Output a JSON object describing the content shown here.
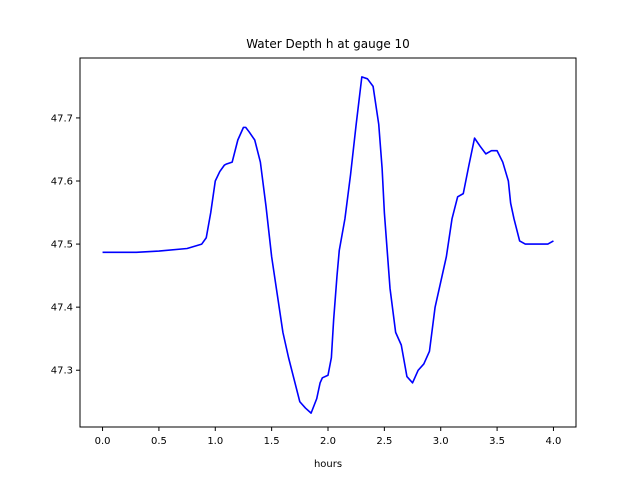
{
  "chart_data": {
    "type": "line",
    "title": "Water Depth h at gauge 10",
    "xlabel": "hours",
    "ylabel": "",
    "xlim": [
      -0.2,
      4.2
    ],
    "ylim": [
      47.21,
      47.795
    ],
    "xticks": [
      0.0,
      0.5,
      1.0,
      1.5,
      2.0,
      2.5,
      3.0,
      3.5,
      4.0
    ],
    "xtick_labels": [
      "0.0",
      "0.5",
      "1.0",
      "1.5",
      "2.0",
      "2.5",
      "3.0",
      "3.5",
      "4.0"
    ],
    "yticks": [
      47.3,
      47.4,
      47.5,
      47.6,
      47.7
    ],
    "ytick_labels": [
      "47.3",
      "47.4",
      "47.5",
      "47.6",
      "47.7"
    ],
    "grid": false,
    "series": [
      {
        "color": "#0000ff",
        "x": [
          0.0,
          0.3,
          0.5,
          0.75,
          0.88,
          0.92,
          0.96,
          1.0,
          1.04,
          1.08,
          1.1,
          1.15,
          1.2,
          1.25,
          1.27,
          1.3,
          1.35,
          1.4,
          1.45,
          1.5,
          1.55,
          1.6,
          1.65,
          1.7,
          1.75,
          1.8,
          1.85,
          1.9,
          1.93,
          1.95,
          2.0,
          2.03,
          2.05,
          2.08,
          2.1,
          2.15,
          2.2,
          2.25,
          2.3,
          2.35,
          2.4,
          2.45,
          2.48,
          2.5,
          2.55,
          2.6,
          2.65,
          2.7,
          2.75,
          2.8,
          2.85,
          2.9,
          2.95,
          3.0,
          3.05,
          3.1,
          3.15,
          3.2,
          3.25,
          3.3,
          3.35,
          3.4,
          3.45,
          3.5,
          3.55,
          3.6,
          3.62,
          3.65,
          3.7,
          3.75,
          3.8,
          3.85,
          3.9,
          3.95,
          4.0
        ],
        "y": [
          47.487,
          47.487,
          47.489,
          47.493,
          47.5,
          47.51,
          47.55,
          47.6,
          47.615,
          47.625,
          47.627,
          47.63,
          47.665,
          47.685,
          47.685,
          47.678,
          47.665,
          47.63,
          47.56,
          47.48,
          47.42,
          47.36,
          47.32,
          47.285,
          47.25,
          47.24,
          47.232,
          47.255,
          47.28,
          47.288,
          47.292,
          47.32,
          47.38,
          47.45,
          47.49,
          47.54,
          47.61,
          47.69,
          47.765,
          47.762,
          47.75,
          47.69,
          47.62,
          47.55,
          47.43,
          47.36,
          47.34,
          47.29,
          47.28,
          47.3,
          47.31,
          47.33,
          47.4,
          47.44,
          47.48,
          47.54,
          47.575,
          47.58,
          47.625,
          47.668,
          47.655,
          47.643,
          47.648,
          47.648,
          47.63,
          47.6,
          47.565,
          47.54,
          47.505,
          47.5,
          47.5,
          47.5,
          47.5,
          47.5,
          47.505
        ]
      }
    ]
  }
}
